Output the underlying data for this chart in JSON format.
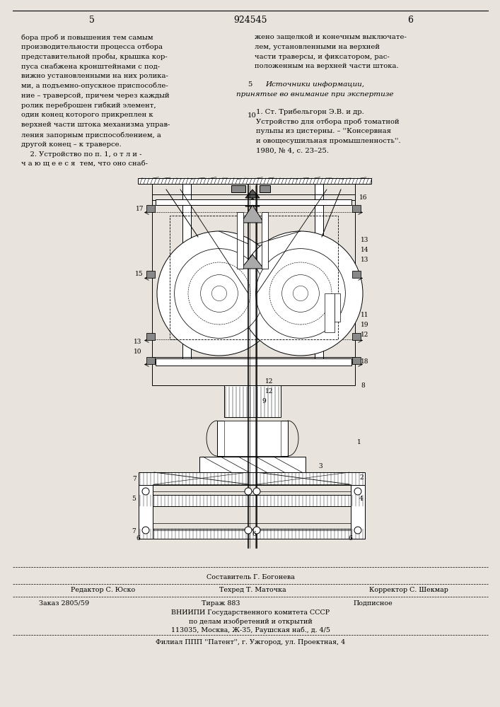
{
  "bg_color": "#e8e4dd",
  "page_number_left": "5",
  "page_number_center": "924545",
  "page_number_right": "6",
  "left_column_lines": [
    "бора проб и повышения тем самым",
    "производительности процесса отбора",
    "представительной пробы, крышка кор-",
    "пуса снабжена кронштейнами с под-",
    "вижно установленными на них ролика-",
    "ми, а подъемно-опускное приспособле-",
    "ние – траверсой, причем через каждый",
    "ролик переброшен гибкий элемент,",
    "один конец которого прикреплен к",
    "верхней части штока механизма управ-",
    "ления запорным приспособлением, а",
    "другой конец – к траверсе.",
    "    2. Устройство по п. 1, о т л и -",
    "ч а ю щ е е с я  тем, что оно снаб-"
  ],
  "right_col1_lines": [
    "жено защелкой и конечным выключате-",
    "лем, установленными на верхней",
    "части траверсы, и фиксатором, рас-",
    "положенным на верхней части штока."
  ],
  "src_header": "Источники информации,",
  "src_subheader": "принятые во внимание при экспертизе",
  "src_ref_lines": [
    "1. Ст. Трибельгорн Э.В. и др.",
    "Устройство для отбора проб томатной",
    "пульпы из цистерны. – ''Консервная",
    "и овощесушильная промышленность''.",
    "1980, № 4, с. 23–25."
  ],
  "footer_composer": "Составитель Г. Богонева",
  "footer_editor": "Редактор С. Юско",
  "footer_techred": "Техред Т. Маточка",
  "footer_corrector": "Корректор С. Шекмар",
  "footer_order": "Заказ 2805/59",
  "footer_print": "Тираж 883",
  "footer_signed": "Подписное",
  "footer_org": "ВНИИПИ Государственного комитета СССР",
  "footer_dept": "по делам изобретений и открытий",
  "footer_addr": "113035, Москва, Ж-35, Раушская наб., д. 4/5",
  "footer_branch": "Филиал ППП ''Патент'', г. Ужгород, ул. Проектная, 4"
}
